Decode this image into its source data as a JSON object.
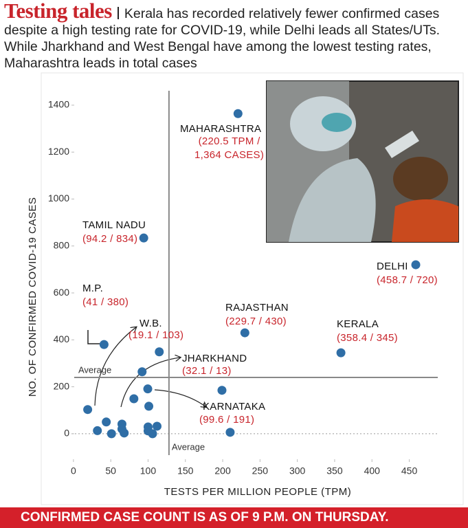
{
  "chart_data": {
    "type": "scatter",
    "title": "Testing tales",
    "subtitle": "Kerala has recorded relatively fewer confirmed cases despite a high testing rate for COVID-19, while Delhi leads all States/UTs. While Jharkhand and West Bengal have among the lowest testing rates, Maharashtra leads in total cases",
    "x_label": "TESTS PER MILLION PEOPLE (TPM)",
    "y_label": "NO. OF CONFIRMED COVID-19 CASES",
    "footnote": "CONFIRMED CASE COUNT IS AS OF 9 P.M. ON THURSDAY.",
    "xlim": [
      -10,
      490
    ],
    "ylim": [
      -100,
      1520
    ],
    "xticks": [
      0,
      50,
      100,
      150,
      200,
      250,
      300,
      350,
      400,
      450
    ],
    "yticks": [
      0,
      200,
      400,
      600,
      800,
      1000,
      1200,
      1400
    ],
    "average": {
      "label": "Average",
      "x": 128,
      "y": 240
    },
    "series": [
      {
        "name": null,
        "color": "#2f6ea6",
        "x": [
          220.5,
          94.2,
          458.7,
          41,
          229.7,
          358.4,
          19.1,
          32.1,
          99.6,
          115,
          92,
          81,
          101,
          199,
          44,
          65,
          65,
          51,
          68,
          100,
          100,
          106,
          112,
          210
        ],
        "values": [
          1364,
          834,
          720,
          380,
          430,
          345,
          103,
          13,
          191,
          349,
          264,
          149,
          117,
          185,
          50,
          41,
          20,
          0,
          3,
          29,
          12,
          0,
          32,
          6
        ],
        "point_names": [
          "MAHARASHTRA",
          "TAMIL NADU",
          "DELHI",
          "M.P.",
          "RAJASTHAN",
          "KERALA",
          "W.B.",
          "JHARKHAND",
          "KARNATAKA",
          null,
          null,
          null,
          null,
          null,
          null,
          null,
          null,
          null,
          null,
          null,
          null,
          null,
          null,
          null
        ],
        "value_labels": [
          "(220.5 TPM /\n1,364 CASES)",
          "(94.2 / 834)",
          "(458.7 / 720)",
          "(41 / 380)",
          "(229.7 / 430)",
          "(358.4 / 345)",
          "(19.1 / 103)",
          "(32.1 / 13)",
          "(99.6 / 191)",
          null,
          null,
          null,
          null,
          null,
          null,
          null,
          null,
          null,
          null,
          null,
          null,
          null,
          null,
          null
        ]
      }
    ]
  }
}
